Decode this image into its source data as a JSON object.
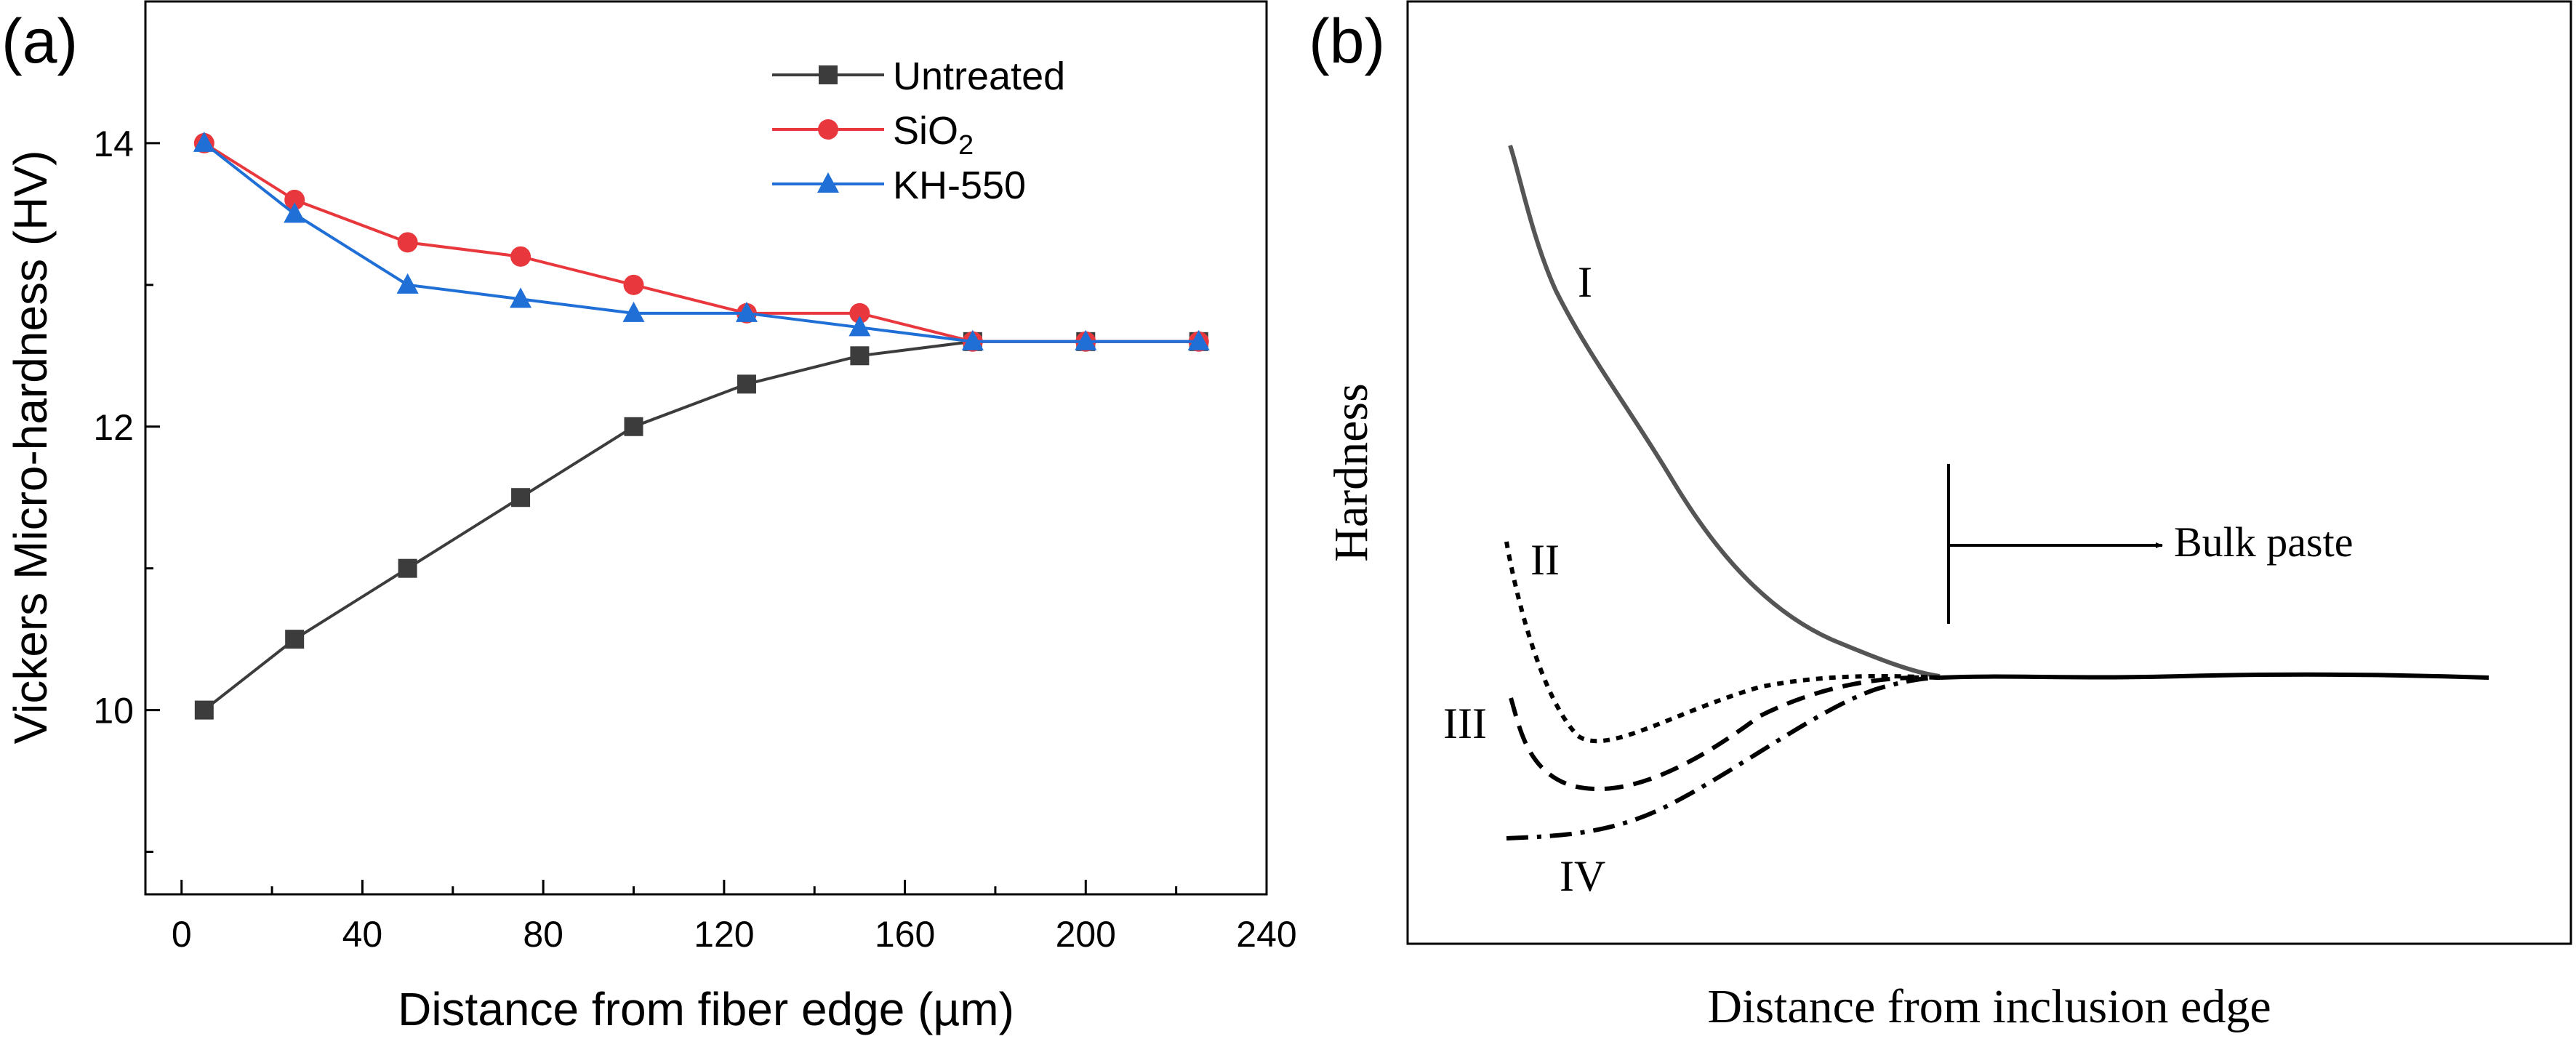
{
  "panels": {
    "a": {
      "label": "(a)",
      "chart_data": {
        "type": "line",
        "xlabel": "Distance from fiber edge (µm)",
        "ylabel": "Vickers Micro-hardness (HV)",
        "xlim": [
          -8,
          240
        ],
        "ylim": [
          8.7,
          15.0
        ],
        "xticks": [
          "0",
          "40",
          "80",
          "120",
          "160",
          "200",
          "240"
        ],
        "xtick_values": [
          0,
          40,
          80,
          120,
          160,
          200,
          240
        ],
        "yticks": [
          "10",
          "12",
          "14"
        ],
        "ytick_values": [
          10,
          12,
          14
        ],
        "grid": false,
        "legend_position": "top-right",
        "x": [
          5,
          25,
          50,
          75,
          100,
          125,
          150,
          175,
          200,
          225
        ],
        "series": [
          {
            "name": "Untreated",
            "name_main": "Untreated",
            "name_sub": "",
            "color": "#3c3c3c",
            "marker": "square",
            "values": [
              10.0,
              10.5,
              11.0,
              11.5,
              12.0,
              12.3,
              12.5,
              12.6,
              12.6,
              12.6
            ]
          },
          {
            "name": "SiO2",
            "name_main": "SiO",
            "name_sub": "2",
            "color": "#e8383d",
            "marker": "circle",
            "values": [
              14.0,
              13.6,
              13.3,
              13.2,
              13.0,
              12.8,
              12.8,
              12.6,
              12.6,
              12.6
            ]
          },
          {
            "name": "KH-550",
            "name_main": "KH-550",
            "name_sub": "",
            "color": "#1f6fd6",
            "marker": "triangle",
            "values": [
              14.0,
              13.5,
              13.0,
              12.9,
              12.8,
              12.8,
              12.7,
              12.6,
              12.6,
              12.6
            ]
          }
        ]
      }
    },
    "b": {
      "label": "(b)",
      "xlabel": "Distance from inclusion edge",
      "ylabel": "Hardness",
      "annotation": "Bulk paste",
      "curve_labels": [
        "I",
        "II",
        "III",
        "IV"
      ]
    }
  }
}
